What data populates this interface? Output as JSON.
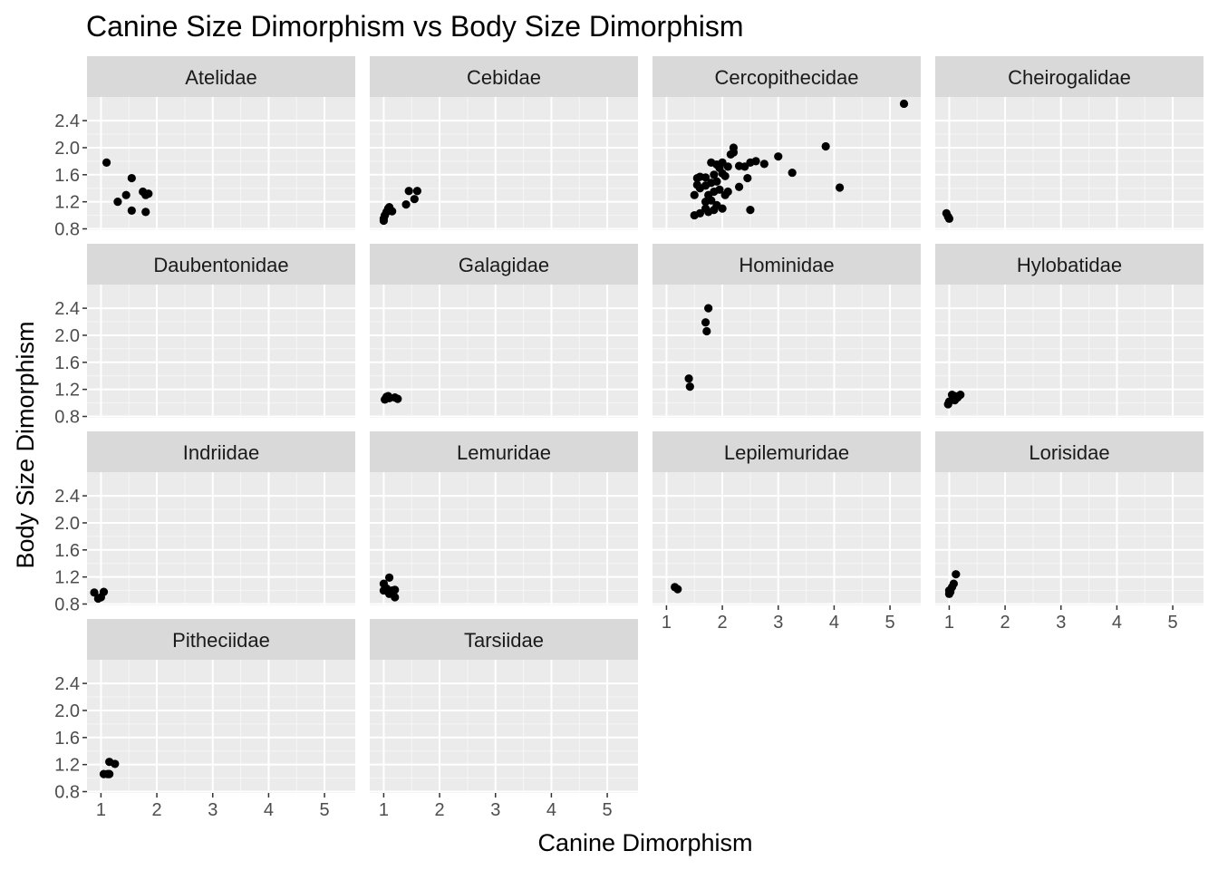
{
  "chart_data": {
    "type": "scatter",
    "title": "Canine Size Dimorphism vs Body Size Dimorphism",
    "xlabel": "Canine Dimorphism",
    "ylabel": "Body Size Dimorphism",
    "xlim": [
      0.75,
      5.55
    ],
    "ylim": [
      0.78,
      2.75
    ],
    "x_ticks": [
      1,
      2,
      3,
      4,
      5
    ],
    "y_ticks": [
      0.8,
      1.2,
      1.6,
      2.0,
      2.4
    ],
    "y_tick_labels": [
      "0.8",
      "1.2",
      "1.6",
      "2.0",
      "2.4"
    ],
    "x_tick_labels": [
      "1",
      "2",
      "3",
      "4",
      "5"
    ],
    "grid": true,
    "ncol": 4,
    "colors": {
      "panel_bg": "#ebebeb",
      "strip_bg": "#d9d9d9",
      "grid_major": "#ffffff",
      "point": "#000000"
    },
    "facets": [
      {
        "name": "Atelidae",
        "points": [
          [
            1.1,
            1.78
          ],
          [
            1.55,
            1.55
          ],
          [
            1.45,
            1.3
          ],
          [
            1.3,
            1.2
          ],
          [
            1.55,
            1.07
          ],
          [
            1.75,
            1.35
          ],
          [
            1.8,
            1.3
          ],
          [
            1.85,
            1.32
          ],
          [
            1.8,
            1.05
          ]
        ]
      },
      {
        "name": "Cebidae",
        "points": [
          [
            1.0,
            0.92
          ],
          [
            1.0,
            0.95
          ],
          [
            1.02,
            1.0
          ],
          [
            1.05,
            1.05
          ],
          [
            1.08,
            1.1
          ],
          [
            1.1,
            1.12
          ],
          [
            1.15,
            1.06
          ],
          [
            1.4,
            1.16
          ],
          [
            1.45,
            1.36
          ],
          [
            1.55,
            1.24
          ],
          [
            1.6,
            1.36
          ]
        ]
      },
      {
        "name": "Cercopithecidae",
        "points": [
          [
            5.25,
            2.65
          ],
          [
            3.85,
            2.02
          ],
          [
            4.1,
            1.41
          ],
          [
            3.25,
            1.63
          ],
          [
            3.0,
            1.87
          ],
          [
            2.75,
            1.76
          ],
          [
            2.6,
            1.8
          ],
          [
            2.5,
            1.78
          ],
          [
            2.4,
            1.72
          ],
          [
            2.45,
            1.55
          ],
          [
            2.5,
            1.08
          ],
          [
            2.3,
            1.73
          ],
          [
            2.2,
            2.0
          ],
          [
            2.2,
            1.93
          ],
          [
            2.15,
            1.9
          ],
          [
            2.1,
            1.72
          ],
          [
            2.0,
            1.78
          ],
          [
            1.95,
            1.7
          ],
          [
            1.9,
            1.75
          ],
          [
            1.8,
            1.78
          ],
          [
            1.85,
            1.6
          ],
          [
            2.05,
            1.58
          ],
          [
            2.0,
            1.62
          ],
          [
            1.9,
            1.5
          ],
          [
            1.7,
            1.56
          ],
          [
            1.6,
            1.57
          ],
          [
            1.55,
            1.55
          ],
          [
            1.55,
            1.45
          ],
          [
            1.6,
            1.4
          ],
          [
            1.5,
            1.3
          ],
          [
            1.7,
            1.44
          ],
          [
            1.8,
            1.48
          ],
          [
            1.75,
            1.3
          ],
          [
            1.85,
            1.35
          ],
          [
            1.95,
            1.38
          ],
          [
            2.05,
            1.3
          ],
          [
            2.1,
            1.35
          ],
          [
            2.3,
            1.42
          ],
          [
            1.7,
            1.2
          ],
          [
            1.8,
            1.22
          ],
          [
            1.9,
            1.15
          ],
          [
            1.7,
            1.1
          ],
          [
            1.75,
            1.05
          ],
          [
            1.6,
            1.03
          ],
          [
            1.5,
            1.0
          ],
          [
            2.0,
            1.1
          ],
          [
            1.85,
            1.08
          ]
        ]
      },
      {
        "name": "Cheirogalidae",
        "points": [
          [
            0.95,
            1.03
          ],
          [
            0.98,
            0.98
          ],
          [
            1.0,
            0.95
          ]
        ]
      },
      {
        "name": "Daubentonidae",
        "points": []
      },
      {
        "name": "Galagidae",
        "points": [
          [
            1.02,
            1.05
          ],
          [
            1.05,
            1.09
          ],
          [
            1.08,
            1.1
          ],
          [
            1.1,
            1.07
          ],
          [
            1.2,
            1.08
          ],
          [
            1.25,
            1.06
          ]
        ]
      },
      {
        "name": "Hominidae",
        "points": [
          [
            1.75,
            2.4
          ],
          [
            1.7,
            2.19
          ],
          [
            1.72,
            2.06
          ],
          [
            1.4,
            1.36
          ],
          [
            1.42,
            1.24
          ]
        ]
      },
      {
        "name": "Hylobatidae",
        "points": [
          [
            0.98,
            0.98
          ],
          [
            1.0,
            1.02
          ],
          [
            1.05,
            1.12
          ],
          [
            1.1,
            1.04
          ],
          [
            1.15,
            1.08
          ],
          [
            1.2,
            1.12
          ],
          [
            1.1,
            1.1
          ]
        ]
      },
      {
        "name": "Indriidae",
        "points": [
          [
            0.88,
            0.97
          ],
          [
            0.95,
            0.88
          ],
          [
            1.0,
            0.9
          ],
          [
            1.05,
            0.98
          ]
        ]
      },
      {
        "name": "Lemuridae",
        "points": [
          [
            1.0,
            1.1
          ],
          [
            1.0,
            1.0
          ],
          [
            1.05,
            1.03
          ],
          [
            1.1,
            1.19
          ],
          [
            1.15,
            1.0
          ],
          [
            1.2,
            1.01
          ],
          [
            1.2,
            0.9
          ],
          [
            1.1,
            0.95
          ]
        ]
      },
      {
        "name": "Lepilemuridae",
        "points": [
          [
            1.15,
            1.05
          ],
          [
            1.2,
            1.02
          ]
        ]
      },
      {
        "name": "Lorisidae",
        "points": [
          [
            1.0,
            0.95
          ],
          [
            1.0,
            1.0
          ],
          [
            1.05,
            1.05
          ],
          [
            1.08,
            1.1
          ],
          [
            1.12,
            1.24
          ],
          [
            1.02,
            0.98
          ]
        ]
      },
      {
        "name": "Pitheciidae",
        "points": [
          [
            1.05,
            1.06
          ],
          [
            1.12,
            1.06
          ],
          [
            1.15,
            1.06
          ],
          [
            1.15,
            1.24
          ],
          [
            1.25,
            1.21
          ]
        ]
      },
      {
        "name": "Tarsiidae",
        "points": []
      }
    ]
  }
}
